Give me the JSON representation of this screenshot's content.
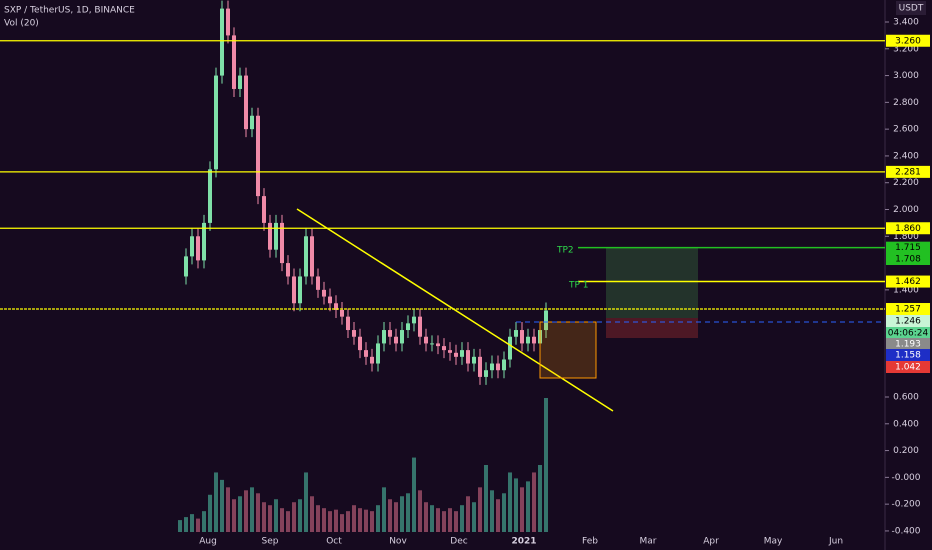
{
  "header": {
    "symbol": "SXP / TetherUS, 1D, BINANCE",
    "indicator": "Vol (20)"
  },
  "price_axis": {
    "currency": "USDT",
    "ticks": [
      {
        "value": 3.4,
        "label": "3.400"
      },
      {
        "value": 3.2,
        "label": "3.200"
      },
      {
        "value": 3.0,
        "label": "3.000"
      },
      {
        "value": 2.8,
        "label": "2.800"
      },
      {
        "value": 2.6,
        "label": "2.600"
      },
      {
        "value": 2.4,
        "label": "2.400"
      },
      {
        "value": 2.2,
        "label": "2.200"
      },
      {
        "value": 2.0,
        "label": "2.000"
      },
      {
        "value": 1.8,
        "label": "1.800"
      },
      {
        "value": 1.4,
        "label": "1.400"
      },
      {
        "value": 0.6,
        "label": "0.600"
      },
      {
        "value": 0.4,
        "label": "0.400"
      },
      {
        "value": 0.2,
        "label": "0.200"
      },
      {
        "value": 0,
        "label": "-0.000"
      },
      {
        "value": -0.2,
        "label": "-0.200"
      },
      {
        "value": -0.4,
        "label": "-0.400"
      }
    ]
  },
  "time_axis": [
    "Aug",
    "Sep",
    "Oct",
    "Nov",
    "Dec",
    "2021",
    "Feb",
    "Mar",
    "Apr",
    "May",
    "Jun"
  ],
  "levels": [
    {
      "value": 3.26,
      "label": "3.260"
    },
    {
      "value": 2.281,
      "label": "2.281"
    },
    {
      "value": 1.86,
      "label": "1.860"
    },
    {
      "value": 1.257,
      "label": "1.257"
    }
  ],
  "targets": [
    {
      "value": 1.715,
      "label": "1.715",
      "color": "#22c022"
    },
    {
      "value": 1.462,
      "label": "1.462",
      "color": "#ffff00"
    }
  ],
  "badges": [
    {
      "value": 1.708,
      "label": "1.708",
      "color": "#22c022"
    },
    {
      "value": 1.246,
      "label": "1.246",
      "color": "#c9f5d6"
    },
    {
      "label": "04:06:24",
      "color": "#5bd38f"
    },
    {
      "value": 1.193,
      "label": "1.193",
      "color": "#8a8a8a"
    },
    {
      "value": 1.158,
      "label": "1.158",
      "color": "#1e2ec6"
    },
    {
      "value": 1.042,
      "label": "1.042",
      "color": "#e53935"
    }
  ],
  "annotations": [
    "TP2",
    "TP 1"
  ],
  "candles": {
    "closes": [
      1.5,
      1.65,
      1.8,
      1.62,
      1.9,
      2.3,
      3.0,
      3.5,
      3.3,
      2.9,
      3.0,
      2.6,
      2.7,
      2.1,
      1.9,
      1.7,
      1.9,
      1.6,
      1.5,
      1.3,
      1.5,
      1.8,
      1.5,
      1.4,
      1.35,
      1.3,
      1.25,
      1.2,
      1.1,
      1.05,
      0.95,
      0.9,
      0.85,
      1.0,
      1.1,
      1.05,
      1.0,
      1.1,
      1.15,
      1.2,
      1.05,
      1.0,
      1.0,
      0.98,
      0.95,
      0.93,
      0.9,
      0.95,
      0.85,
      0.9,
      0.75,
      0.8,
      0.85,
      0.8,
      0.88,
      1.05,
      1.1,
      1.0,
      1.05,
      1.0,
      1.1,
      1.246
    ],
    "volumes": [
      8,
      10,
      12,
      9,
      14,
      25,
      40,
      35,
      30,
      22,
      24,
      28,
      30,
      26,
      20,
      18,
      22,
      16,
      14,
      20,
      22,
      40,
      24,
      18,
      16,
      14,
      15,
      12,
      14,
      18,
      16,
      15,
      14,
      18,
      30,
      22,
      20,
      24,
      26,
      50,
      28,
      20,
      18,
      16,
      14,
      16,
      14,
      18,
      24,
      20,
      30,
      45,
      28,
      22,
      26,
      40,
      36,
      30,
      34,
      40,
      45,
      90
    ]
  }
}
